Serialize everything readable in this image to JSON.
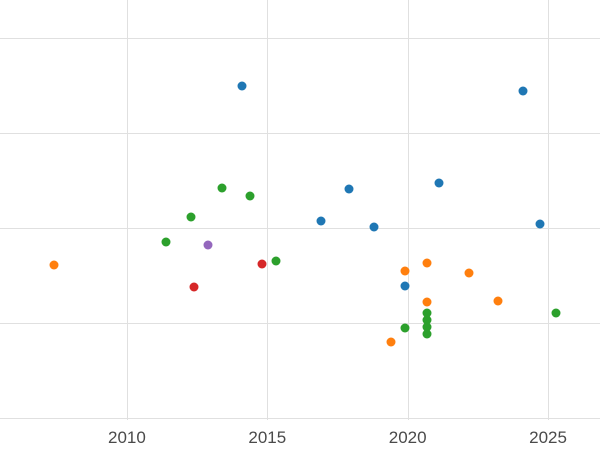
{
  "chart_data": {
    "type": "scatter",
    "title": "",
    "xlabel": "",
    "ylabel": "",
    "x_ticks": [
      2010,
      2015,
      2020,
      2025
    ],
    "xlim": [
      2005.48,
      2026.85
    ],
    "ylim": [
      -0.335,
      4.4
    ],
    "y_gridlines": [
      0,
      1,
      2,
      3,
      4
    ],
    "grid_color": "#e0e0e0",
    "tick_label_color": "#4a4a4a",
    "series": [
      {
        "name": "blue",
        "color": "#1f77b4",
        "points": [
          [
            2014.1,
            3.49
          ],
          [
            2024.1,
            3.44
          ],
          [
            2021.1,
            2.47
          ],
          [
            2017.9,
            2.41
          ],
          [
            2016.9,
            2.07
          ],
          [
            2024.7,
            2.04
          ],
          [
            2018.8,
            2.01
          ],
          [
            2019.9,
            1.39
          ]
        ]
      },
      {
        "name": "orange",
        "color": "#ff7f0e",
        "points": [
          [
            2007.4,
            1.61
          ],
          [
            2020.7,
            1.63
          ],
          [
            2019.9,
            1.55
          ],
          [
            2022.2,
            1.53
          ],
          [
            2023.2,
            1.23
          ],
          [
            2020.7,
            1.22
          ],
          [
            2019.4,
            0.8
          ]
        ]
      },
      {
        "name": "green",
        "color": "#2ca02c",
        "points": [
          [
            2013.4,
            2.42
          ],
          [
            2014.4,
            2.34
          ],
          [
            2012.3,
            2.12
          ],
          [
            2011.4,
            1.85
          ],
          [
            2015.3,
            1.65
          ],
          [
            2025.3,
            1.11
          ],
          [
            2020.7,
            1.11
          ],
          [
            2020.7,
            1.03
          ],
          [
            2020.7,
            0.96
          ],
          [
            2020.7,
            0.89
          ],
          [
            2019.9,
            0.95
          ]
        ]
      },
      {
        "name": "red",
        "color": "#d62728",
        "points": [
          [
            2014.8,
            1.62
          ],
          [
            2012.4,
            1.38
          ]
        ]
      },
      {
        "name": "purple",
        "color": "#9467bd",
        "points": [
          [
            2012.9,
            1.82
          ]
        ]
      }
    ]
  }
}
